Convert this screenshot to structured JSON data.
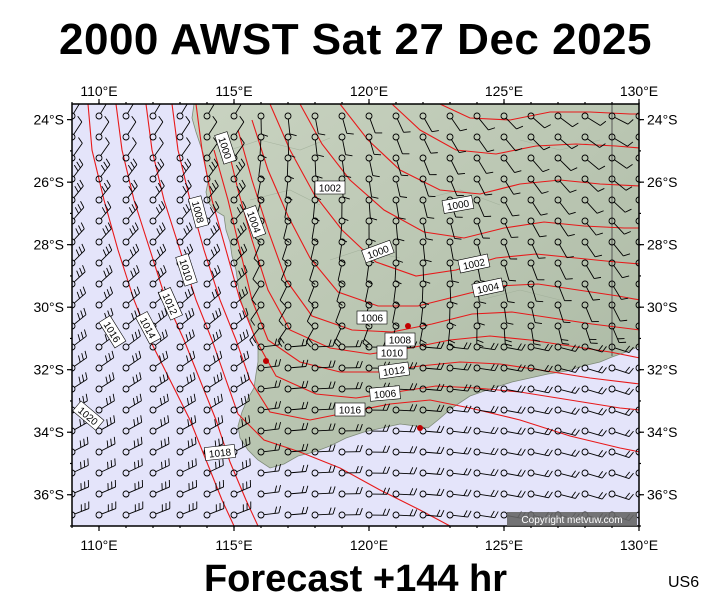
{
  "header": {
    "title": "2000 AWST Sat 27 Dec 2025"
  },
  "footer": {
    "forecast": "Forecast +144 hr",
    "code": "US6",
    "copyright": "Copyright metvuw.com"
  },
  "map": {
    "lon_range": [
      109,
      130
    ],
    "lat_range": [
      -37,
      -23.5
    ],
    "lon_ticks": [
      {
        "value": 110,
        "label": "110°E"
      },
      {
        "value": 115,
        "label": "115°E"
      },
      {
        "value": 120,
        "label": "120°E"
      },
      {
        "value": 125,
        "label": "125°E"
      },
      {
        "value": 130,
        "label": "130°E"
      }
    ],
    "lat_ticks": [
      {
        "value": -24,
        "label": "24°S"
      },
      {
        "value": -26,
        "label": "26°S"
      },
      {
        "value": -28,
        "label": "28°S"
      },
      {
        "value": -30,
        "label": "30°S"
      },
      {
        "value": -32,
        "label": "32°S"
      },
      {
        "value": -34,
        "label": "34°S"
      },
      {
        "value": -36,
        "label": "36°S"
      }
    ],
    "colors": {
      "ocean": "#e4e4fa",
      "land": "#bcc8b4",
      "isobar": "#e8191a",
      "wind": "#000000"
    },
    "isobar_labels": [
      "1000",
      "1000",
      "1002",
      "1002",
      "1004",
      "1004",
      "1006",
      "1006",
      "1008",
      "1008",
      "1010",
      "1010",
      "1012",
      "1012",
      "1014",
      "1016",
      "1016",
      "1018",
      "1020"
    ]
  }
}
